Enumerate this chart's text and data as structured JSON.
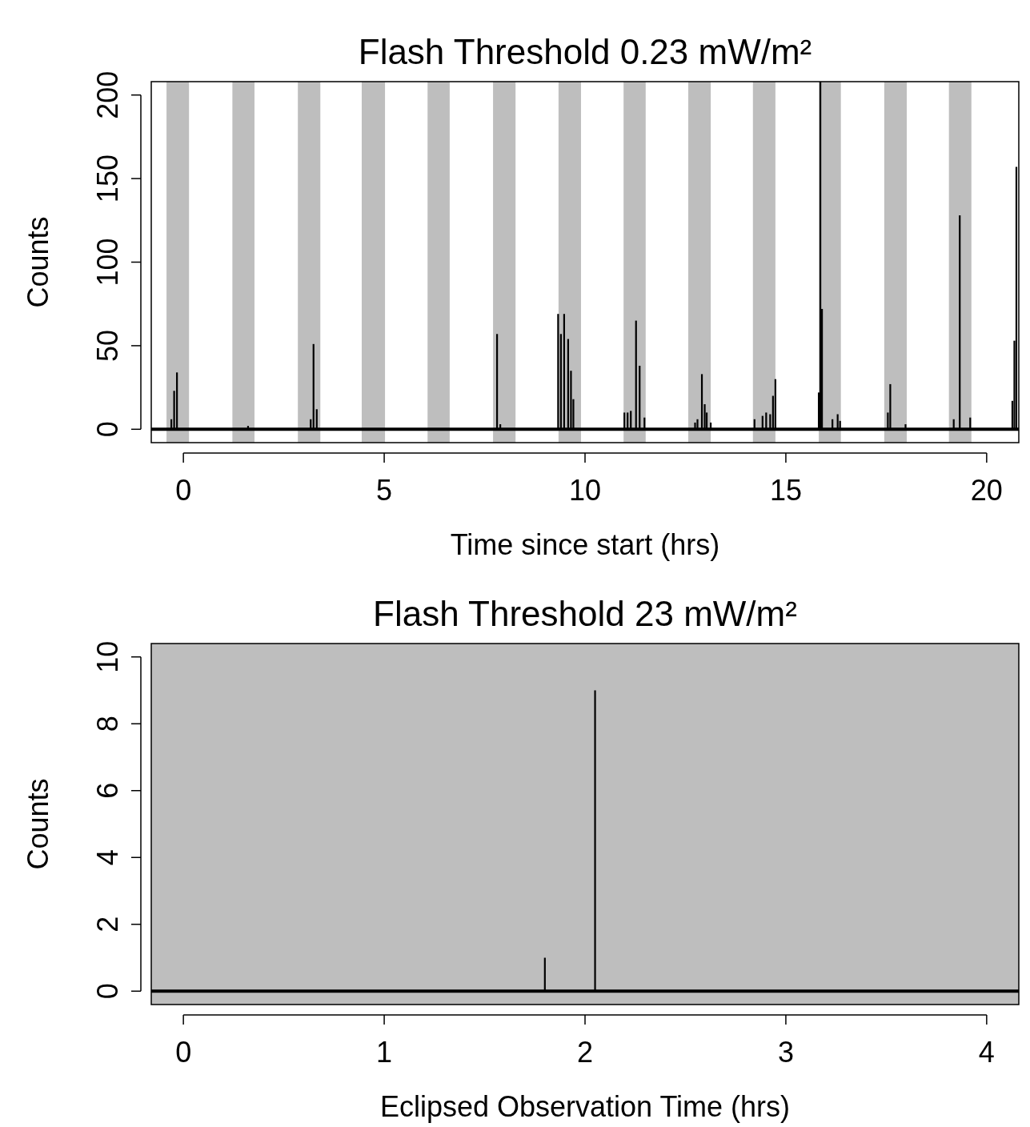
{
  "chart_data": [
    {
      "type": "bar",
      "title": "Flash Threshold 0.23 mW/m²",
      "xlabel": "Time since start (hrs)",
      "ylabel": "Counts",
      "xlim": [
        -0.8,
        20.8
      ],
      "ylim": [
        -8,
        208
      ],
      "xticks": [
        0,
        5,
        10,
        15,
        20
      ],
      "yticks": [
        0,
        50,
        100,
        150,
        200
      ],
      "bands": [
        {
          "axis": "x",
          "from": -0.42,
          "to": 0.14,
          "color": "#bebebe"
        },
        {
          "axis": "x",
          "from": 1.22,
          "to": 1.77,
          "color": "#bebebe"
        },
        {
          "axis": "x",
          "from": 2.85,
          "to": 3.41,
          "color": "#bebebe"
        },
        {
          "axis": "x",
          "from": 4.44,
          "to": 5.02,
          "color": "#bebebe"
        },
        {
          "axis": "x",
          "from": 6.08,
          "to": 6.63,
          "color": "#bebebe"
        },
        {
          "axis": "x",
          "from": 7.71,
          "to": 8.27,
          "color": "#bebebe"
        },
        {
          "axis": "x",
          "from": 9.34,
          "to": 9.9,
          "color": "#bebebe"
        },
        {
          "axis": "x",
          "from": 10.96,
          "to": 11.51,
          "color": "#bebebe"
        },
        {
          "axis": "x",
          "from": 12.57,
          "to": 13.13,
          "color": "#bebebe"
        },
        {
          "axis": "x",
          "from": 14.18,
          "to": 14.74,
          "color": "#bebebe"
        },
        {
          "axis": "x",
          "from": 15.82,
          "to": 16.37,
          "color": "#bebebe"
        },
        {
          "axis": "x",
          "from": 17.45,
          "to": 18.01,
          "color": "#bebebe"
        },
        {
          "axis": "x",
          "from": 19.06,
          "to": 19.62,
          "color": "#bebebe"
        }
      ],
      "ref_lines": [
        {
          "axis": "y",
          "value": 0,
          "color": "#000000"
        }
      ],
      "series": [
        {
          "color": "#000000",
          "x": [
            -0.3,
            -0.23,
            -0.16,
            1.61,
            3.17,
            3.24,
            3.32,
            7.81,
            7.89,
            9.33,
            9.4,
            9.48,
            9.58,
            9.65,
            9.71,
            10.98,
            11.06,
            11.14,
            11.27,
            11.36,
            11.48,
            12.74,
            12.8,
            12.91,
            12.98,
            13.03,
            13.13,
            14.22,
            14.42,
            14.51,
            14.61,
            14.68,
            14.74,
            15.82,
            15.86,
            15.9,
            16.16,
            16.29,
            16.35,
            17.54,
            17.6,
            17.98,
            19.18,
            19.33,
            19.59,
            20.64,
            20.69,
            20.74
          ],
          "values": [
            6,
            23,
            34,
            2,
            6,
            51,
            12,
            57,
            3,
            69,
            57,
            69,
            54,
            35,
            18,
            10,
            10,
            11,
            65,
            38,
            7,
            4,
            6,
            33,
            15,
            10,
            4,
            6,
            8,
            10,
            9,
            20,
            30,
            22,
            208,
            72,
            6,
            9,
            5,
            10,
            27,
            3,
            6,
            128,
            7,
            17,
            53,
            157
          ]
        }
      ]
    },
    {
      "type": "bar",
      "title": "Flash Threshold 23 mW/m²",
      "xlabel": "Eclipsed Observation Time (hrs)",
      "ylabel": "Counts",
      "xlim": [
        -0.16,
        4.16
      ],
      "ylim": [
        -0.4,
        10.4
      ],
      "xticks": [
        0,
        1,
        2,
        3,
        4
      ],
      "yticks": [
        0,
        2,
        4,
        6,
        8,
        10
      ],
      "bands": [
        {
          "axis": "x",
          "from": -0.16,
          "to": 4.16,
          "color": "#bebebe"
        }
      ],
      "ref_lines": [
        {
          "axis": "y",
          "value": 0,
          "color": "#000000"
        }
      ],
      "series": [
        {
          "color": "#000000",
          "x": [
            1.8,
            2.05
          ],
          "values": [
            1,
            9
          ]
        }
      ]
    }
  ]
}
